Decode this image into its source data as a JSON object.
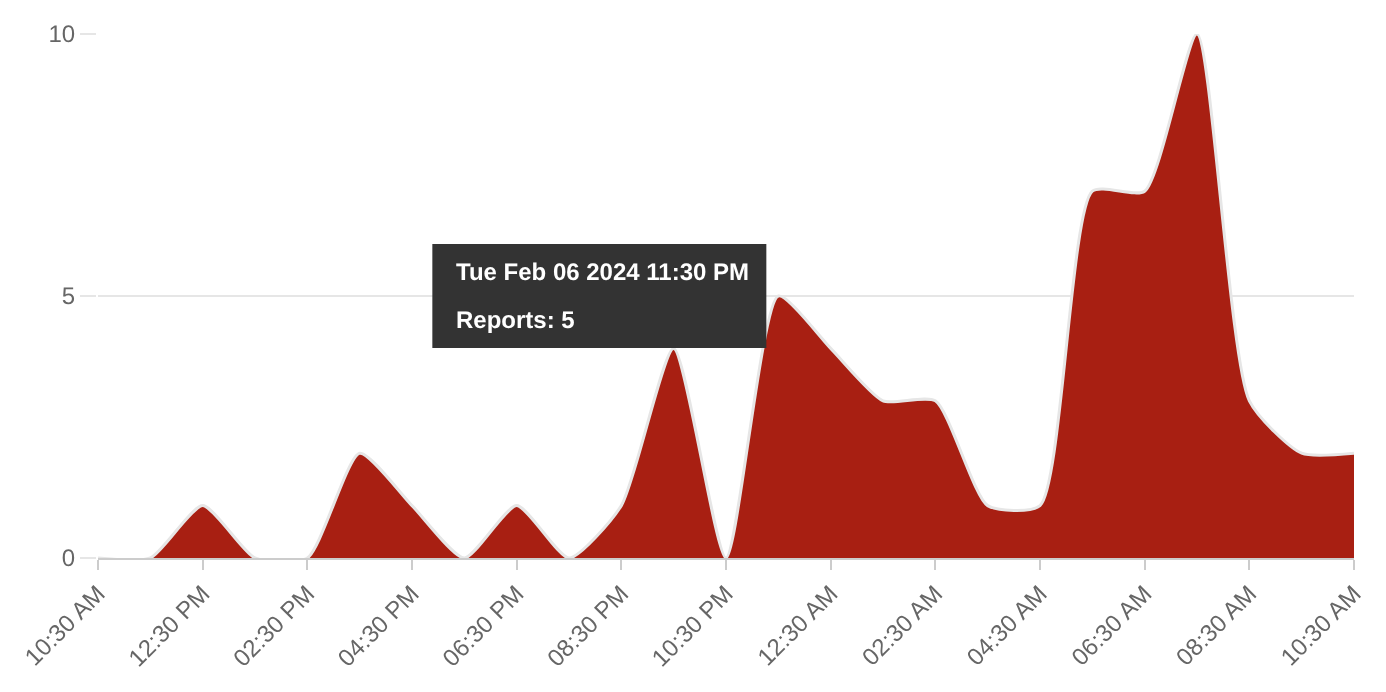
{
  "chart_data": {
    "type": "area",
    "x": [
      "2024-02-06T10:30",
      "2024-02-06T11:30",
      "2024-02-06T12:30",
      "2024-02-06T13:30",
      "2024-02-06T14:30",
      "2024-02-06T15:30",
      "2024-02-06T16:30",
      "2024-02-06T17:30",
      "2024-02-06T18:30",
      "2024-02-06T19:30",
      "2024-02-06T20:30",
      "2024-02-06T21:30",
      "2024-02-06T22:30",
      "2024-02-06T23:30",
      "2024-02-07T00:30",
      "2024-02-07T01:30",
      "2024-02-07T02:30",
      "2024-02-07T03:30",
      "2024-02-07T04:30",
      "2024-02-07T05:30",
      "2024-02-07T06:30",
      "2024-02-07T07:30",
      "2024-02-07T08:30",
      "2024-02-07T09:30",
      "2024-02-07T10:30"
    ],
    "series": [
      {
        "color": "#a81f12",
        "values": [
          0,
          0,
          1,
          0,
          0,
          2,
          1,
          0,
          1,
          0,
          1,
          4,
          0,
          5,
          4,
          3,
          3,
          1,
          1,
          7,
          7,
          10,
          3,
          2,
          2
        ]
      }
    ],
    "xlim": [
      "2024-02-06T10:30",
      "2024-02-07T10:30"
    ],
    "xticks": [
      {
        "value": "2024-02-06T10:30",
        "label": "10:30 AM"
      },
      {
        "value": "2024-02-06T12:30",
        "label": "12:30 PM"
      },
      {
        "value": "2024-02-06T14:30",
        "label": "02:30 PM"
      },
      {
        "value": "2024-02-06T16:30",
        "label": "04:30 PM"
      },
      {
        "value": "2024-02-06T18:30",
        "label": "06:30 PM"
      },
      {
        "value": "2024-02-06T20:30",
        "label": "08:30 PM"
      },
      {
        "value": "2024-02-06T22:30",
        "label": "10:30 PM"
      },
      {
        "value": "2024-02-07T00:30",
        "label": "12:30 AM"
      },
      {
        "value": "2024-02-07T02:30",
        "label": "02:30 AM"
      },
      {
        "value": "2024-02-07T04:30",
        "label": "04:30 AM"
      },
      {
        "value": "2024-02-07T06:30",
        "label": "06:30 AM"
      },
      {
        "value": "2024-02-07T08:30",
        "label": "08:30 AM"
      },
      {
        "value": "2024-02-07T10:30",
        "label": "10:30 AM"
      }
    ],
    "ylim": [
      0,
      10
    ],
    "yticks": [
      0,
      5,
      10
    ],
    "grid": "y",
    "annotations": [
      {
        "text": "Tue Feb 06 2024 11:30 PM",
        "x": "2024-02-06T23:30",
        "y": 5
      },
      "Reports: 5"
    ]
  }
}
